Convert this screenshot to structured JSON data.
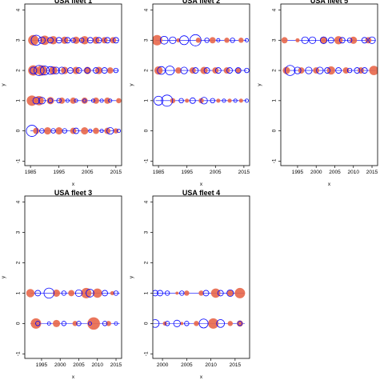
{
  "colors": {
    "red": "#E8674A",
    "blue": "#0000FF",
    "frame": "#000000"
  },
  "chart_data": [
    {
      "type": "scatter",
      "title": "USA fleet 1",
      "xlabel": "x",
      "ylabel": "y",
      "xlim": [
        1983,
        2017
      ],
      "ylim": [
        -1.15,
        4.2
      ],
      "xticks": [
        1985,
        1995,
        2005,
        2015
      ],
      "yticks": [
        -1,
        0,
        1,
        2,
        3,
        4
      ],
      "grid": false,
      "rows": [
        {
          "y": 3,
          "x": [
            1985,
            2016
          ],
          "red": [
            [
              1986,
              1.0
            ],
            [
              1990,
              0.9
            ],
            [
              1993,
              0.8
            ],
            [
              1997,
              0.7
            ],
            [
              2001,
              0.7
            ],
            [
              2004,
              0.8
            ],
            [
              2008,
              0.7
            ],
            [
              2011,
              0.6
            ],
            [
              2014,
              0.6
            ]
          ],
          "blue": [
            [
              1987,
              0.9
            ],
            [
              1989,
              0.6
            ],
            [
              1992,
              0.5
            ],
            [
              1995,
              0.5
            ],
            [
              1998,
              0.5
            ],
            [
              2000,
              0.4
            ],
            [
              2003,
              0.4
            ],
            [
              2006,
              0.5
            ],
            [
              2009,
              0.5
            ],
            [
              2012,
              0.5
            ],
            [
              2015,
              0.5
            ]
          ]
        },
        {
          "y": 2,
          "x": [
            1985,
            2016
          ],
          "red": [
            [
              1986,
              1.0
            ],
            [
              1989,
              1.0
            ],
            [
              1993,
              0.8
            ],
            [
              1997,
              0.7
            ],
            [
              2001,
              0.7
            ],
            [
              2005,
              0.7
            ],
            [
              2009,
              0.7
            ],
            [
              2013,
              0.6
            ]
          ],
          "blue": [
            [
              1986,
              0.6
            ],
            [
              1988,
              0.9
            ],
            [
              1990,
              0.8
            ],
            [
              1992,
              0.7
            ],
            [
              1994,
              0.6
            ],
            [
              1996,
              0.6
            ],
            [
              1999,
              0.5
            ],
            [
              2002,
              0.5
            ],
            [
              2005,
              0.5
            ],
            [
              2008,
              0.5
            ],
            [
              2011,
              0.5
            ],
            [
              2015,
              0.4
            ]
          ]
        },
        {
          "y": 1,
          "x": [
            1985,
            2016
          ],
          "red": [
            [
              1985.5,
              1.0
            ],
            [
              1988,
              0.9
            ],
            [
              1992,
              0.7
            ],
            [
              1996,
              0.6
            ],
            [
              2000,
              0.6
            ],
            [
              2004,
              0.6
            ],
            [
              2008,
              0.6
            ],
            [
              2012,
              0.6
            ],
            [
              2016,
              0.5
            ]
          ],
          "blue": [
            [
              1987,
              0.6
            ],
            [
              1989,
              0.6
            ],
            [
              1992,
              0.4
            ],
            [
              1995,
              0.4
            ],
            [
              1998,
              0.3
            ],
            [
              2001,
              0.3
            ],
            [
              2004,
              0.3
            ],
            [
              2007,
              0.3
            ],
            [
              2010,
              0.3
            ],
            [
              2013,
              0.3
            ]
          ]
        },
        {
          "y": 0,
          "x": [
            1985,
            2016
          ],
          "red": [
            [
              1987,
              0.6
            ],
            [
              1991,
              0.7
            ],
            [
              1995,
              0.7
            ],
            [
              2000,
              0.6
            ],
            [
              2004,
              0.7
            ],
            [
              2008,
              0.6
            ],
            [
              2012,
              0.6
            ],
            [
              2015,
              0.5
            ]
          ],
          "blue": [
            [
              1985.5,
              1.0
            ],
            [
              1989,
              0.4
            ],
            [
              1993,
              0.4
            ],
            [
              1997,
              0.4
            ],
            [
              2001,
              0.5
            ],
            [
              2006,
              0.3
            ],
            [
              2010,
              0.3
            ],
            [
              2013,
              0.6
            ],
            [
              2016,
              0.3
            ]
          ]
        }
      ]
    },
    {
      "type": "scatter",
      "title": "USA fleet 2",
      "xlabel": "x",
      "ylabel": "y",
      "xlim": [
        1983,
        2017
      ],
      "ylim": [
        -1.15,
        4.2
      ],
      "xticks": [
        1985,
        1995,
        2005,
        2015
      ],
      "yticks": [
        -1,
        0,
        1,
        2,
        3,
        4
      ],
      "grid": false,
      "rows": [
        {
          "y": 3,
          "x": [
            1984,
            2016
          ],
          "red": [
            [
              1984.5,
              1.0
            ],
            [
              1992,
              0.4
            ],
            [
              1999,
              0.5
            ],
            [
              2004,
              0.6
            ],
            [
              2009,
              0.5
            ],
            [
              2014,
              0.5
            ]
          ],
          "blue": [
            [
              1987,
              0.7
            ],
            [
              1990,
              0.6
            ],
            [
              1994,
              0.8
            ],
            [
              1998,
              1.0
            ],
            [
              2002,
              0.4
            ],
            [
              2006,
              0.3
            ],
            [
              2011,
              0.4
            ],
            [
              2016,
              0.3
            ]
          ]
        },
        {
          "y": 2,
          "x": [
            1984,
            2016
          ],
          "red": [
            [
              1985,
              0.8
            ],
            [
              1992,
              0.6
            ],
            [
              1997,
              0.6
            ],
            [
              2001,
              0.7
            ],
            [
              2005,
              0.6
            ],
            [
              2009,
              0.6
            ],
            [
              2013,
              0.5
            ]
          ],
          "blue": [
            [
              1986,
              0.7
            ],
            [
              1989,
              0.8
            ],
            [
              1994,
              0.6
            ],
            [
              1998,
              0.5
            ],
            [
              2002,
              0.5
            ],
            [
              2006,
              0.5
            ],
            [
              2010,
              0.5
            ],
            [
              2013,
              0.5
            ],
            [
              2016,
              0.4
            ]
          ]
        },
        {
          "y": 1,
          "x": [
            1984,
            2016
          ],
          "red": [
            [
              1990,
              0.5
            ],
            [
              1995,
              0.4
            ],
            [
              2000,
              0.5
            ],
            [
              2006,
              0.4
            ],
            [
              2010,
              0.4
            ],
            [
              2014,
              0.4
            ]
          ],
          "blue": [
            [
              1985,
              0.8
            ],
            [
              1988,
              1.0
            ],
            [
              1993,
              0.4
            ],
            [
              1997,
              0.5
            ],
            [
              2001,
              0.6
            ],
            [
              2004,
              0.4
            ],
            [
              2008,
              0.3
            ],
            [
              2012,
              0.3
            ],
            [
              2016,
              0.3
            ]
          ]
        }
      ]
    },
    {
      "type": "scatter",
      "title": "USA fleet 5",
      "xlabel": "x",
      "ylabel": "y",
      "xlim": [
        1990.5,
        2016.5
      ],
      "ylim": [
        -1.15,
        4.2
      ],
      "xticks": [
        1995,
        2000,
        2005,
        2010,
        2015
      ],
      "yticks": [
        -1,
        0,
        1,
        2,
        3,
        4
      ],
      "grid": false,
      "rows": [
        {
          "y": 3,
          "x": [
            1991,
            2016
          ],
          "red": [
            [
              1991.5,
              0.6
            ],
            [
              1995,
              0.4
            ],
            [
              2002,
              0.7
            ],
            [
              2006,
              0.8
            ],
            [
              2010,
              0.7
            ],
            [
              2014,
              0.6
            ]
          ],
          "blue": [
            [
              1997,
              0.6
            ],
            [
              1999,
              0.6
            ],
            [
              2002,
              0.6
            ],
            [
              2004,
              0.5
            ],
            [
              2007,
              0.5
            ],
            [
              2009,
              0.4
            ],
            [
              2013,
              0.5
            ],
            [
              2015,
              0.6
            ]
          ]
        },
        {
          "y": 2,
          "x": [
            1991,
            2016
          ],
          "red": [
            [
              1992,
              0.7
            ],
            [
              1996,
              0.6
            ],
            [
              2000,
              0.6
            ],
            [
              2004,
              0.8
            ],
            [
              2008,
              0.6
            ],
            [
              2012,
              0.6
            ],
            [
              2015.5,
              0.9
            ]
          ],
          "blue": [
            [
              1993,
              0.9
            ],
            [
              1995,
              0.6
            ],
            [
              1998,
              0.6
            ],
            [
              2001,
              0.6
            ],
            [
              2003,
              0.5
            ],
            [
              2006,
              0.5
            ],
            [
              2009,
              0.4
            ],
            [
              2011,
              0.5
            ],
            [
              2013,
              0.5
            ]
          ]
        }
      ]
    },
    {
      "type": "scatter",
      "title": "USA fleet 3",
      "xlabel": "x",
      "ylabel": "y",
      "xlim": [
        1990.5,
        2016.5
      ],
      "ylim": [
        -1.15,
        4.2
      ],
      "xticks": [
        1995,
        2000,
        2005,
        2010,
        2015
      ],
      "yticks": [
        -1,
        0,
        1,
        2,
        3,
        4
      ],
      "grid": false,
      "rows": [
        {
          "y": 1,
          "x": [
            1992,
            2016
          ],
          "red": [
            [
              1992,
              0.8
            ],
            [
              1999,
              0.7
            ],
            [
              2003,
              0.6
            ],
            [
              2007,
              1.0
            ],
            [
              2010,
              0.9
            ],
            [
              2014,
              0.4
            ]
          ],
          "blue": [
            [
              1994,
              0.5
            ],
            [
              1997,
              0.9
            ],
            [
              2001,
              0.4
            ],
            [
              2005,
              0.6
            ],
            [
              2008,
              0.7
            ],
            [
              2012,
              0.5
            ],
            [
              2015,
              0.4
            ]
          ]
        },
        {
          "y": 0,
          "x": [
            1992,
            2016
          ],
          "red": [
            [
              1993.5,
              1.0
            ],
            [
              1999,
              0.7
            ],
            [
              2004,
              0.5
            ],
            [
              2009,
              1.2
            ],
            [
              2013,
              0.5
            ]
          ],
          "blue": [
            [
              1994,
              0.4
            ],
            [
              1997,
              0.3
            ],
            [
              2001,
              0.4
            ],
            [
              2005,
              0.4
            ],
            [
              2008,
              0.3
            ],
            [
              2012,
              0.4
            ],
            [
              2015,
              0.3
            ]
          ]
        }
      ]
    },
    {
      "type": "scatter",
      "title": "USA fleet 4",
      "xlabel": "x",
      "ylabel": "y",
      "xlim": [
        1998,
        2018
      ],
      "ylim": [
        -1.15,
        4.2
      ],
      "xticks": [
        2000,
        2005,
        2010,
        2015
      ],
      "yticks": [
        -1,
        0,
        1,
        2,
        3,
        4
      ],
      "grid": false,
      "rows": [
        {
          "y": 1,
          "x": [
            1998,
            2017
          ],
          "red": [
            [
              2003,
              0.3
            ],
            [
              2005,
              0.5
            ],
            [
              2008,
              0.5
            ],
            [
              2011,
              0.9
            ],
            [
              2014,
              0.6
            ],
            [
              2016,
              1.0
            ]
          ],
          "blue": [
            [
              1998.5,
              0.5
            ],
            [
              1999.5,
              0.5
            ],
            [
              2001,
              0.4
            ],
            [
              2004,
              0.4
            ],
            [
              2009,
              0.5
            ],
            [
              2012,
              0.5
            ],
            [
              2014,
              0.6
            ]
          ]
        },
        {
          "y": 0,
          "x": [
            1998,
            2017
          ],
          "red": [
            [
              2000.5,
              0.4
            ],
            [
              2004,
              0.3
            ],
            [
              2007,
              0.5
            ],
            [
              2010.5,
              1.0
            ],
            [
              2014,
              0.5
            ],
            [
              2016,
              0.6
            ]
          ],
          "blue": [
            [
              1998.5,
              0.7
            ],
            [
              2001,
              0.4
            ],
            [
              2003,
              0.6
            ],
            [
              2005,
              0.4
            ],
            [
              2008.5,
              0.8
            ],
            [
              2012,
              0.7
            ],
            [
              2016,
              0.4
            ]
          ]
        }
      ]
    }
  ]
}
